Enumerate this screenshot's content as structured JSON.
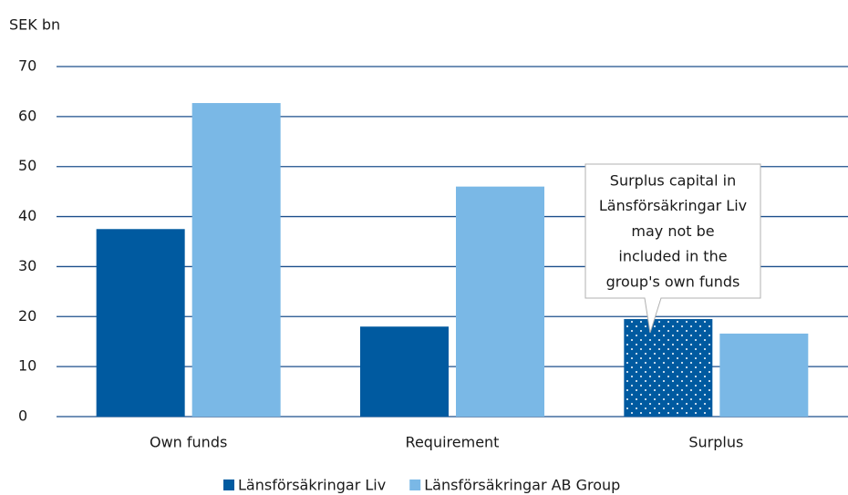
{
  "chart_data": {
    "type": "bar",
    "y_axis_label": "SEK bn",
    "categories": [
      "Own funds",
      "Requirement",
      "Surplus"
    ],
    "series": [
      {
        "name": "Länsförsäkringar Liv",
        "color": "#005aa0",
        "values": [
          37.5,
          18,
          19.5
        ]
      },
      {
        "name": "Länsförsäkringar AB Group",
        "color": "#7ab8e6",
        "values": [
          62.7,
          46,
          16.6
        ]
      }
    ],
    "ylim": [
      0,
      70
    ],
    "yticks": [
      0,
      10,
      20,
      30,
      40,
      50,
      60,
      70
    ],
    "grid": true,
    "annotation": [
      "Surplus capital in",
      "Länsförsäkringar Liv",
      "may not be",
      "included in the",
      "group's own funds"
    ],
    "legend": "bottom"
  }
}
